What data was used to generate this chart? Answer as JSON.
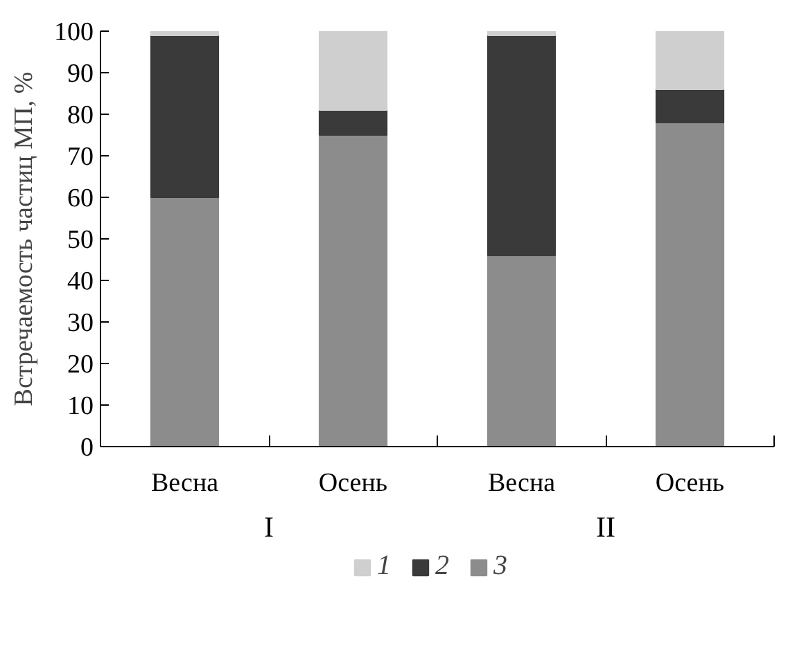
{
  "chart_data": {
    "type": "bar",
    "stacked": true,
    "ylabel": "Встречаемость частиц МП, %",
    "categories": [
      "Весна",
      "Осень",
      "Весна",
      "Осень"
    ],
    "series": [
      {
        "name": "3",
        "color": "#8c8c8c",
        "values": [
          60,
          75,
          46,
          78
        ]
      },
      {
        "name": "2",
        "color": "#3a3a3a",
        "values": [
          39,
          6,
          53,
          8
        ]
      },
      {
        "name": "1",
        "color": "#cfcfcf",
        "values": [
          1,
          19,
          1,
          14
        ]
      }
    ],
    "ylim": [
      0,
      100
    ],
    "yticks": [
      0,
      10,
      20,
      30,
      40,
      50,
      60,
      70,
      80,
      90,
      100
    ],
    "grid": false,
    "legend": "bottom",
    "annotations": [
      "I",
      "II"
    ]
  }
}
